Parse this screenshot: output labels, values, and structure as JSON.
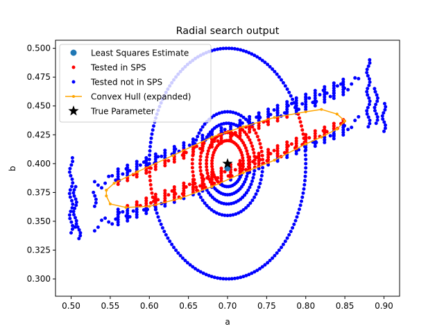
{
  "chart_data": {
    "type": "scatter",
    "title": "Radial search output",
    "xlabel": "a",
    "ylabel": "b",
    "xlim": [
      0.48,
      0.92
    ],
    "ylim": [
      0.285,
      0.507
    ],
    "x_ticks": [
      "0.50",
      "0.55",
      "0.60",
      "0.65",
      "0.70",
      "0.75",
      "0.80",
      "0.85",
      "0.90"
    ],
    "y_ticks": [
      "0.300",
      "0.325",
      "0.350",
      "0.375",
      "0.400",
      "0.425",
      "0.450",
      "0.475",
      "0.500"
    ],
    "legend_position": "top-left",
    "legend": [
      {
        "key": "ls",
        "label": "Least Squares Estimate",
        "marker": "circle",
        "color": "#1f77b4"
      },
      {
        "key": "sps_in",
        "label": "Tested in SPS",
        "marker": "small-dot",
        "color": "#ff0000"
      },
      {
        "key": "sps_out",
        "label": "Tested not in SPS",
        "marker": "small-dot",
        "color": "#0000ff"
      },
      {
        "key": "hull",
        "label": "Convex Hull (expanded)",
        "marker": "line-dot",
        "color": "#ffa500"
      },
      {
        "key": "true",
        "label": "True Parameter",
        "marker": "star",
        "color": "#000000"
      }
    ],
    "least_squares_estimate": {
      "a": 0.7,
      "b": 0.396
    },
    "true_parameter": {
      "a": 0.7,
      "b": 0.4
    },
    "convex_hull": [
      [
        0.545,
        0.377
      ],
      [
        0.555,
        0.383
      ],
      [
        0.585,
        0.393
      ],
      [
        0.63,
        0.407
      ],
      [
        0.68,
        0.423
      ],
      [
        0.72,
        0.432
      ],
      [
        0.76,
        0.44
      ],
      [
        0.8,
        0.445
      ],
      [
        0.82,
        0.447
      ],
      [
        0.84,
        0.443
      ],
      [
        0.85,
        0.437
      ],
      [
        0.84,
        0.43
      ],
      [
        0.82,
        0.423
      ],
      [
        0.8,
        0.417
      ],
      [
        0.76,
        0.403
      ],
      [
        0.72,
        0.392
      ],
      [
        0.68,
        0.38
      ],
      [
        0.64,
        0.37
      ],
      [
        0.6,
        0.363
      ],
      [
        0.57,
        0.362
      ],
      [
        0.55,
        0.365
      ],
      [
        0.545,
        0.372
      ],
      [
        0.545,
        0.377
      ]
    ],
    "ellipses": [
      {
        "center": [
          0.7,
          0.4
        ],
        "ra": 0.1,
        "rb": 0.1,
        "n": 170
      },
      {
        "center": [
          0.7,
          0.4
        ],
        "ra": 0.045,
        "rb": 0.045,
        "n": 80
      },
      {
        "center": [
          0.7,
          0.4
        ],
        "ra": 0.035,
        "rb": 0.035,
        "n": 70
      },
      {
        "center": [
          0.7,
          0.4
        ],
        "ra": 0.027,
        "rb": 0.027,
        "n": 60
      },
      {
        "center": [
          0.7,
          0.4
        ],
        "ra": 0.02,
        "rb": 0.02,
        "n": 50
      }
    ],
    "band": {
      "slope": 0.27,
      "x_start": 0.5,
      "x_end": 0.87,
      "b_at_050": 0.355,
      "width": 0.035
    },
    "edge_columns": [
      {
        "a": 0.5,
        "b_range": [
          0.34,
          0.405
        ],
        "n": 22
      },
      {
        "a": 0.505,
        "b_range": [
          0.345,
          0.38
        ],
        "n": 14
      },
      {
        "a": 0.51,
        "b_range": [
          0.335,
          0.345
        ],
        "n": 5
      },
      {
        "a": 0.88,
        "b_range": [
          0.432,
          0.49
        ],
        "n": 22
      },
      {
        "a": 0.89,
        "b_range": [
          0.435,
          0.465
        ],
        "n": 12
      },
      {
        "a": 0.9,
        "b_range": [
          0.428,
          0.452
        ],
        "n": 10
      },
      {
        "a": 0.53,
        "b_range": [
          0.363,
          0.375
        ],
        "n": 5
      }
    ]
  }
}
